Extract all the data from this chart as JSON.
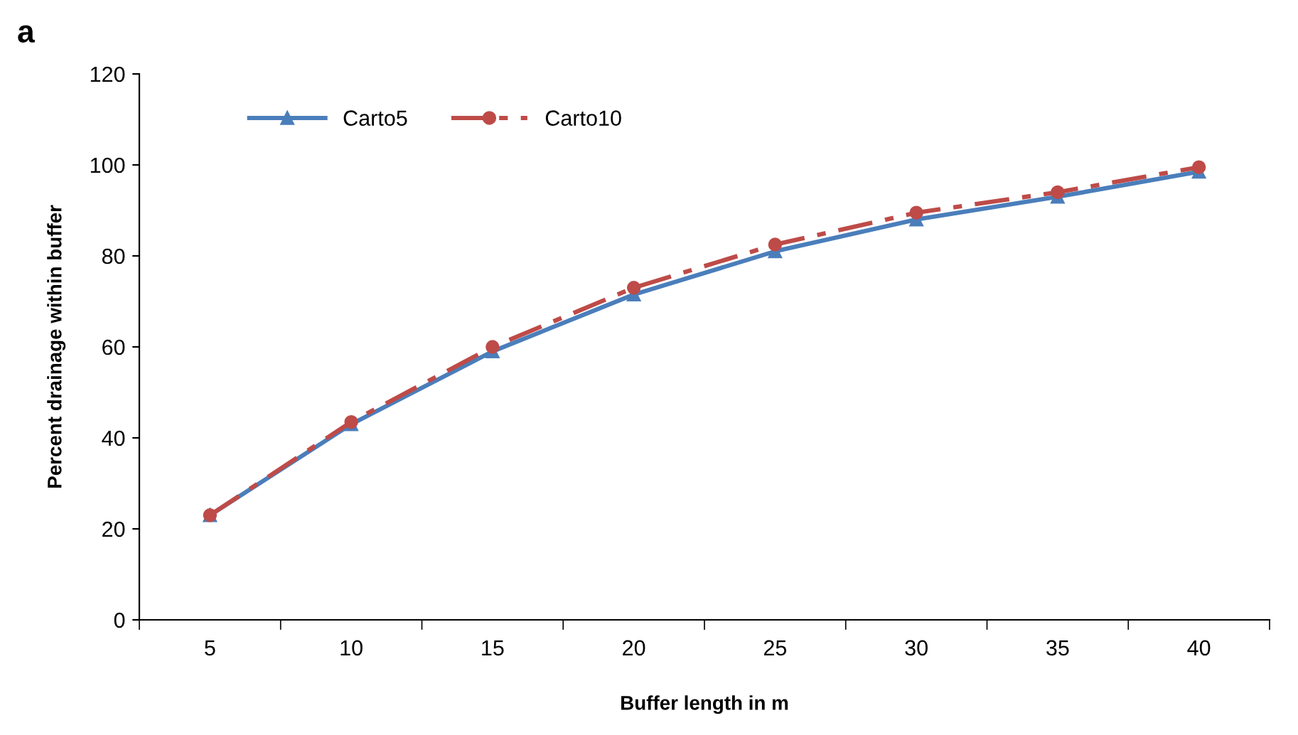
{
  "chart_data": {
    "type": "line",
    "annotations": [
      "a"
    ],
    "xlabel": "Buffer length in m",
    "ylabel": "Percent drainage within buffer",
    "categories": [
      "5",
      "10",
      "15",
      "20",
      "25",
      "30",
      "35",
      "40"
    ],
    "series": [
      {
        "name": "Carto5",
        "color": "#4a7ebb",
        "marker": "triangle",
        "line_style": "solid",
        "values": [
          23,
          43,
          59,
          71.5,
          81,
          88,
          93,
          98.5
        ]
      },
      {
        "name": "Carto10",
        "color": "#be4b48",
        "marker": "circle",
        "line_style": "dashed",
        "values": [
          23,
          43.5,
          60,
          73,
          82.5,
          89.5,
          94,
          99.5
        ]
      }
    ],
    "ylim": [
      0,
      120
    ],
    "yticks": [
      0,
      20,
      40,
      60,
      80,
      100,
      120
    ],
    "grid": false,
    "legend": "top left"
  }
}
